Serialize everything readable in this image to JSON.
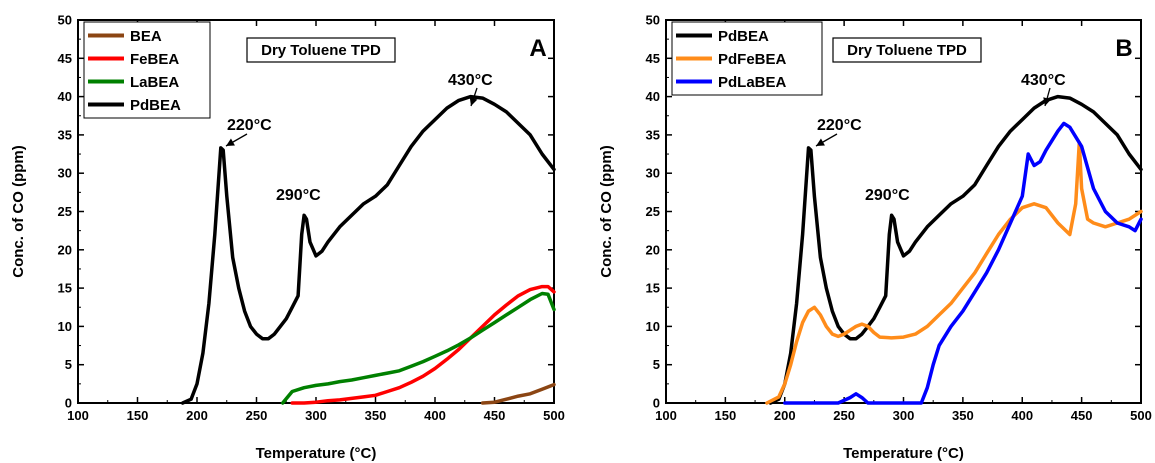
{
  "chart_data": [
    {
      "type": "line",
      "panel": "A",
      "panel_letter": "A",
      "box_title": "Dry Toluene TPD",
      "xlabel": "Temperature (°C)",
      "ylabel": "Conc. of CO (ppm)",
      "xlim": [
        100,
        500
      ],
      "ylim": [
        0,
        50
      ],
      "xticks": [
        100,
        150,
        200,
        250,
        300,
        350,
        400,
        450,
        500
      ],
      "yticks": [
        0,
        5,
        10,
        15,
        20,
        25,
        30,
        35,
        40,
        45,
        50
      ],
      "grid": false,
      "legend_position": "top-left",
      "series": [
        {
          "name": "BEA",
          "color": "#8B4513",
          "points": [
            [
              440,
              0
            ],
            [
              450,
              0.1
            ],
            [
              460,
              0.5
            ],
            [
              470,
              0.9
            ],
            [
              480,
              1.2
            ],
            [
              490,
              1.8
            ],
            [
              500,
              2.4
            ]
          ]
        },
        {
          "name": "FeBEA",
          "color": "#ff0000",
          "points": [
            [
              280,
              0
            ],
            [
              290,
              0
            ],
            [
              300,
              0.1
            ],
            [
              310,
              0.3
            ],
            [
              320,
              0.4
            ],
            [
              330,
              0.6
            ],
            [
              340,
              0.8
            ],
            [
              350,
              1.0
            ],
            [
              360,
              1.5
            ],
            [
              370,
              2.0
            ],
            [
              380,
              2.7
            ],
            [
              390,
              3.5
            ],
            [
              400,
              4.5
            ],
            [
              410,
              5.7
            ],
            [
              420,
              7.0
            ],
            [
              430,
              8.5
            ],
            [
              440,
              10.0
            ],
            [
              450,
              11.5
            ],
            [
              460,
              12.8
            ],
            [
              470,
              14.0
            ],
            [
              480,
              14.8
            ],
            [
              490,
              15.2
            ],
            [
              495,
              15.2
            ],
            [
              500,
              14.5
            ]
          ]
        },
        {
          "name": "LaBEA",
          "color": "#008000",
          "points": [
            [
              272,
              0
            ],
            [
              280,
              1.5
            ],
            [
              290,
              2.0
            ],
            [
              300,
              2.3
            ],
            [
              310,
              2.5
            ],
            [
              320,
              2.8
            ],
            [
              330,
              3.0
            ],
            [
              340,
              3.3
            ],
            [
              350,
              3.6
            ],
            [
              360,
              3.9
            ],
            [
              370,
              4.2
            ],
            [
              380,
              4.8
            ],
            [
              390,
              5.4
            ],
            [
              400,
              6.1
            ],
            [
              410,
              6.8
            ],
            [
              420,
              7.6
            ],
            [
              430,
              8.5
            ],
            [
              440,
              9.5
            ],
            [
              450,
              10.5
            ],
            [
              460,
              11.5
            ],
            [
              470,
              12.5
            ],
            [
              480,
              13.5
            ],
            [
              490,
              14.3
            ],
            [
              495,
              14.2
            ],
            [
              500,
              12.2
            ]
          ]
        },
        {
          "name": "PdBEA",
          "color": "#000000",
          "points": [
            [
              188,
              0
            ],
            [
              195,
              0.5
            ],
            [
              200,
              2.5
            ],
            [
              205,
              6.5
            ],
            [
              210,
              13
            ],
            [
              215,
              22
            ],
            [
              220,
              33.3
            ],
            [
              222,
              33
            ],
            [
              225,
              27
            ],
            [
              230,
              19
            ],
            [
              235,
              15
            ],
            [
              240,
              12
            ],
            [
              245,
              10
            ],
            [
              250,
              9
            ],
            [
              255,
              8.4
            ],
            [
              260,
              8.4
            ],
            [
              265,
              9
            ],
            [
              270,
              10
            ],
            [
              275,
              11
            ],
            [
              280,
              12.5
            ],
            [
              285,
              14
            ],
            [
              288,
              22
            ],
            [
              290,
              24.5
            ],
            [
              292,
              24
            ],
            [
              295,
              21
            ],
            [
              300,
              19.2
            ],
            [
              305,
              19.8
            ],
            [
              310,
              21
            ],
            [
              320,
              23
            ],
            [
              330,
              24.5
            ],
            [
              340,
              26
            ],
            [
              350,
              27
            ],
            [
              360,
              28.5
            ],
            [
              370,
              31
            ],
            [
              380,
              33.5
            ],
            [
              390,
              35.5
            ],
            [
              400,
              37
            ],
            [
              410,
              38.5
            ],
            [
              420,
              39.5
            ],
            [
              430,
              40
            ],
            [
              440,
              39.8
            ],
            [
              450,
              39
            ],
            [
              460,
              38
            ],
            [
              470,
              36.5
            ],
            [
              480,
              35
            ],
            [
              490,
              32.5
            ],
            [
              500,
              30.5
            ]
          ]
        }
      ],
      "annotations": [
        {
          "text": "220°C",
          "x": 220,
          "y": 33.3
        },
        {
          "text": "290°C",
          "x": 290,
          "y": 24.5
        },
        {
          "text": "430°C",
          "x": 430,
          "y": 40
        }
      ]
    },
    {
      "type": "line",
      "panel": "B",
      "panel_letter": "B",
      "box_title": "Dry Toluene TPD",
      "xlabel": "Temperature (°C)",
      "ylabel": "Conc. of CO (ppm)",
      "xlim": [
        100,
        500
      ],
      "ylim": [
        0,
        50
      ],
      "xticks": [
        100,
        150,
        200,
        250,
        300,
        350,
        400,
        450,
        500
      ],
      "yticks": [
        0,
        5,
        10,
        15,
        20,
        25,
        30,
        35,
        40,
        45,
        50
      ],
      "grid": false,
      "legend_position": "top-left",
      "series": [
        {
          "name": "PdBEA",
          "color": "#000000",
          "points": [
            [
              188,
              0
            ],
            [
              195,
              0.5
            ],
            [
              200,
              2.5
            ],
            [
              205,
              6.5
            ],
            [
              210,
              13
            ],
            [
              215,
              22
            ],
            [
              220,
              33.3
            ],
            [
              222,
              33
            ],
            [
              225,
              27
            ],
            [
              230,
              19
            ],
            [
              235,
              15
            ],
            [
              240,
              12
            ],
            [
              245,
              10
            ],
            [
              250,
              9
            ],
            [
              255,
              8.4
            ],
            [
              260,
              8.4
            ],
            [
              265,
              9
            ],
            [
              270,
              10
            ],
            [
              275,
              11
            ],
            [
              280,
              12.5
            ],
            [
              285,
              14
            ],
            [
              288,
              22
            ],
            [
              290,
              24.5
            ],
            [
              292,
              24
            ],
            [
              295,
              21
            ],
            [
              300,
              19.2
            ],
            [
              305,
              19.8
            ],
            [
              310,
              21
            ],
            [
              320,
              23
            ],
            [
              330,
              24.5
            ],
            [
              340,
              26
            ],
            [
              350,
              27
            ],
            [
              360,
              28.5
            ],
            [
              370,
              31
            ],
            [
              380,
              33.5
            ],
            [
              390,
              35.5
            ],
            [
              400,
              37
            ],
            [
              410,
              38.5
            ],
            [
              420,
              39.5
            ],
            [
              430,
              40
            ],
            [
              440,
              39.8
            ],
            [
              450,
              39
            ],
            [
              460,
              38
            ],
            [
              470,
              36.5
            ],
            [
              480,
              35
            ],
            [
              490,
              32.5
            ],
            [
              500,
              30.5
            ]
          ]
        },
        {
          "name": "PdFeBEA",
          "color": "#ff8c1a",
          "points": [
            [
              185,
              0
            ],
            [
              195,
              0.8
            ],
            [
              200,
              2.5
            ],
            [
              205,
              5
            ],
            [
              210,
              8
            ],
            [
              215,
              10.5
            ],
            [
              220,
              12
            ],
            [
              225,
              12.5
            ],
            [
              230,
              11.5
            ],
            [
              235,
              10
            ],
            [
              240,
              9
            ],
            [
              245,
              8.7
            ],
            [
              250,
              9
            ],
            [
              255,
              9.5
            ],
            [
              260,
              10
            ],
            [
              265,
              10.3
            ],
            [
              270,
              10
            ],
            [
              275,
              9.2
            ],
            [
              280,
              8.6
            ],
            [
              290,
              8.5
            ],
            [
              300,
              8.6
            ],
            [
              310,
              9
            ],
            [
              320,
              10
            ],
            [
              330,
              11.5
            ],
            [
              340,
              13
            ],
            [
              350,
              15
            ],
            [
              360,
              17
            ],
            [
              370,
              19.5
            ],
            [
              380,
              22
            ],
            [
              390,
              24
            ],
            [
              400,
              25.5
            ],
            [
              410,
              26
            ],
            [
              420,
              25.5
            ],
            [
              430,
              23.5
            ],
            [
              440,
              22
            ],
            [
              445,
              26
            ],
            [
              448,
              34
            ],
            [
              450,
              28
            ],
            [
              455,
              24
            ],
            [
              460,
              23.5
            ],
            [
              470,
              23
            ],
            [
              480,
              23.5
            ],
            [
              490,
              24
            ],
            [
              500,
              25
            ]
          ]
        },
        {
          "name": "PdLaBEA",
          "color": "#0000ff",
          "points": [
            [
              200,
              0
            ],
            [
              245,
              0
            ],
            [
              255,
              0.7
            ],
            [
              260,
              1.2
            ],
            [
              265,
              0.7
            ],
            [
              270,
              0
            ],
            [
              315,
              0
            ],
            [
              320,
              2
            ],
            [
              325,
              5
            ],
            [
              330,
              7.5
            ],
            [
              340,
              10
            ],
            [
              350,
              12
            ],
            [
              360,
              14.5
            ],
            [
              370,
              17
            ],
            [
              380,
              20
            ],
            [
              390,
              23.5
            ],
            [
              400,
              27
            ],
            [
              405,
              32.5
            ],
            [
              410,
              31
            ],
            [
              415,
              31.5
            ],
            [
              420,
              33
            ],
            [
              430,
              35.5
            ],
            [
              435,
              36.5
            ],
            [
              440,
              36
            ],
            [
              450,
              33.5
            ],
            [
              460,
              28
            ],
            [
              470,
              25
            ],
            [
              480,
              23.5
            ],
            [
              490,
              23
            ],
            [
              495,
              22.5
            ],
            [
              500,
              24
            ]
          ]
        }
      ],
      "annotations": [
        {
          "text": "220°C",
          "x": 220,
          "y": 33.3
        },
        {
          "text": "290°C",
          "x": 290,
          "y": 24.5
        },
        {
          "text": "430°C",
          "x": 430,
          "y": 40
        }
      ]
    }
  ]
}
